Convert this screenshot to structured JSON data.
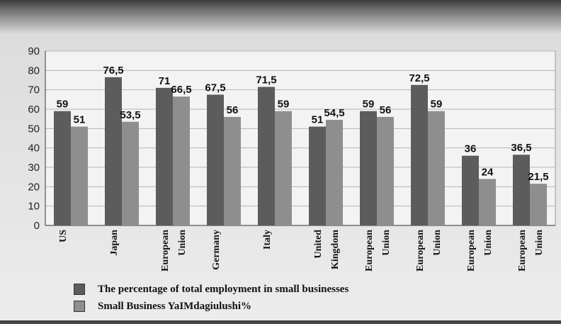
{
  "chart_data": {
    "type": "bar",
    "title": "",
    "xlabel": "",
    "ylabel": "",
    "ylim": [
      0,
      90
    ],
    "yticks": [
      "0",
      "10",
      "20",
      "30",
      "40",
      "50",
      "60",
      "70",
      "80",
      "90"
    ],
    "grid": true,
    "legend_position": "bottom-left",
    "categories": [
      [
        "US"
      ],
      [
        "Japan"
      ],
      [
        "European",
        "Union"
      ],
      [
        "Germany"
      ],
      [
        "Italy"
      ],
      [
        "United",
        "Kingdom"
      ],
      [
        "European",
        "Union"
      ],
      [
        "European",
        "Union"
      ],
      [
        "European",
        "Union"
      ],
      [
        "European",
        "Union"
      ]
    ],
    "series": [
      {
        "name": "The percentage of total employment in small businesses",
        "color": "#5c5c5c",
        "values": [
          59,
          76.5,
          71,
          67.5,
          71.5,
          51,
          59,
          72.5,
          36,
          36.5
        ],
        "labels": [
          "59",
          "76,5",
          "71",
          "67,5",
          "71,5",
          "51",
          "59",
          "72,5",
          "36",
          "36,5"
        ]
      },
      {
        "name": "Small Business YaIMdagiulushi%",
        "color": "#8e8e8e",
        "values": [
          51,
          53.5,
          66.5,
          56,
          59,
          54.5,
          56,
          59,
          24,
          21.5
        ],
        "labels": [
          "51",
          "53,5",
          "66,5",
          "56",
          "59",
          "54,5",
          "56",
          "59",
          "24",
          "21,5"
        ]
      }
    ]
  }
}
